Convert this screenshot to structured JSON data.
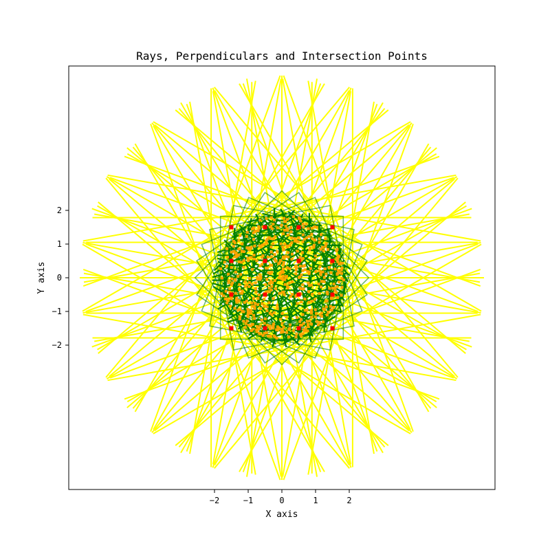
{
  "chart_data": {
    "type": "line",
    "title": "Rays, Perpendiculars and Intersection Points",
    "xlabel": "X axis",
    "ylabel": "Y axis",
    "xlim": [
      -6.3,
      6.3
    ],
    "ylim": [
      -6.2,
      6.2
    ],
    "x_ticks": [
      {
        "value": -2,
        "label": "−2"
      },
      {
        "value": -1,
        "label": "−1"
      },
      {
        "value": 0,
        "label": "0"
      },
      {
        "value": 1,
        "label": "1"
      },
      {
        "value": 2,
        "label": "2"
      }
    ],
    "y_ticks": [
      {
        "value": 2,
        "label": "2"
      },
      {
        "value": 1,
        "label": "1"
      },
      {
        "value": 0,
        "label": "0"
      },
      {
        "value": -1,
        "label": "−1"
      },
      {
        "value": -2,
        "label": "−2"
      }
    ],
    "grid": false,
    "legend": "none",
    "point_grid": {
      "x_range": [
        -2,
        2
      ],
      "y_range": [
        -2,
        2
      ],
      "spacing": 1,
      "inner_radius": 0.5,
      "dense_extent": 1.85
    },
    "series": [
      {
        "role": "rays",
        "color": "#ffff00",
        "ray_count": 36,
        "ray_length": 6.0,
        "half_width": 2.1
      },
      {
        "role": "perpendiculars",
        "color": "#008000",
        "square_half_size": 1.35,
        "rotation_steps": 8
      },
      {
        "role": "intersection-points",
        "colors": [
          "#ffa500",
          "#ff0000"
        ]
      }
    ]
  }
}
